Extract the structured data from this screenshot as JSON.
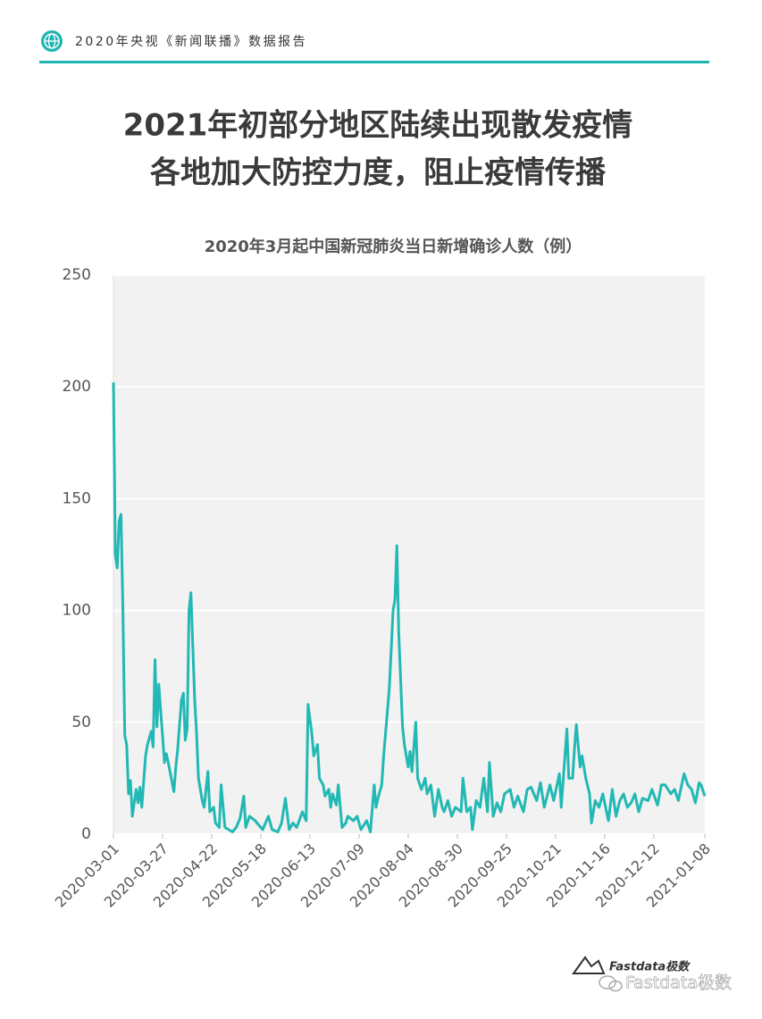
{
  "header": {
    "report": "2020年央视《新闻联播》数据报告",
    "headline": [
      "2021年初部分地区陆续出现散发疫情",
      "各地加大防控力度，阻止疫情传播"
    ]
  },
  "chart_data": {
    "type": "line",
    "title": "2020年3月起中国新冠肺炎当日新增确诊人数（例）",
    "color": "#22b8b4",
    "grid": true,
    "x": [
      "2020-03-01",
      "2020-03-02",
      "2020-03-03",
      "2020-03-04",
      "2020-03-05",
      "2020-03-06",
      "2020-03-07",
      "2020-03-08",
      "2020-03-09",
      "2020-03-10",
      "2020-03-11",
      "2020-03-13",
      "2020-03-14",
      "2020-03-15",
      "2020-03-16",
      "2020-03-18",
      "2020-03-19",
      "2020-03-21",
      "2020-03-22",
      "2020-03-23",
      "2020-03-24",
      "2020-03-25",
      "2020-03-26",
      "2020-03-27",
      "2020-03-28",
      "2020-03-29",
      "2020-03-30",
      "2020-04-02",
      "2020-04-03",
      "2020-04-04",
      "2020-04-06",
      "2020-04-07",
      "2020-04-08",
      "2020-04-09",
      "2020-04-10",
      "2020-04-11",
      "2020-04-13",
      "2020-04-14",
      "2020-04-15",
      "2020-04-17",
      "2020-04-18",
      "2020-04-20",
      "2020-04-21",
      "2020-04-23",
      "2020-04-24",
      "2020-04-26",
      "2020-04-27",
      "2020-04-29",
      "2020-05-01",
      "2020-05-03",
      "2020-05-05",
      "2020-05-07",
      "2020-05-09",
      "2020-05-10",
      "2020-05-12",
      "2020-05-15",
      "2020-05-17",
      "2020-05-19",
      "2020-05-22",
      "2020-05-24",
      "2020-05-27",
      "2020-05-29",
      "2020-05-31",
      "2020-06-02",
      "2020-06-04",
      "2020-06-06",
      "2020-06-09",
      "2020-06-11",
      "2020-06-12",
      "2020-06-14",
      "2020-06-15",
      "2020-06-17",
      "2020-06-18",
      "2020-06-20",
      "2020-06-21",
      "2020-06-23",
      "2020-06-24",
      "2020-06-25",
      "2020-06-27",
      "2020-06-28",
      "2020-06-30",
      "2020-07-02",
      "2020-07-03",
      "2020-07-06",
      "2020-07-08",
      "2020-07-10",
      "2020-07-13",
      "2020-07-15",
      "2020-07-17",
      "2020-07-18",
      "2020-07-19",
      "2020-07-21",
      "2020-07-22",
      "2020-07-24",
      "2020-07-25",
      "2020-07-27",
      "2020-07-28",
      "2020-07-29",
      "2020-07-30",
      "2020-08-01",
      "2020-08-02",
      "2020-08-04",
      "2020-08-05",
      "2020-08-06",
      "2020-08-08",
      "2020-08-09",
      "2020-08-11",
      "2020-08-13",
      "2020-08-14",
      "2020-08-16",
      "2020-08-18",
      "2020-08-20",
      "2020-08-22",
      "2020-08-23",
      "2020-08-25",
      "2020-08-27",
      "2020-08-29",
      "2020-09-01",
      "2020-09-02",
      "2020-09-04",
      "2020-09-06",
      "2020-09-07",
      "2020-09-09",
      "2020-09-11",
      "2020-09-13",
      "2020-09-15",
      "2020-09-16",
      "2020-09-18",
      "2020-09-20",
      "2020-09-22",
      "2020-09-24",
      "2020-09-27",
      "2020-09-29",
      "2020-10-01",
      "2020-10-04",
      "2020-10-06",
      "2020-10-08",
      "2020-10-11",
      "2020-10-13",
      "2020-10-15",
      "2020-10-18",
      "2020-10-20",
      "2020-10-23",
      "2020-10-24",
      "2020-10-27",
      "2020-10-28",
      "2020-10-30",
      "2020-10-31",
      "2020-11-01",
      "2020-11-03",
      "2020-11-04",
      "2020-11-06",
      "2020-11-08",
      "2020-11-09",
      "2020-11-11",
      "2020-11-13",
      "2020-11-15",
      "2020-11-18",
      "2020-11-20",
      "2020-11-22",
      "2020-11-24",
      "2020-11-26",
      "2020-11-28",
      "2020-11-30",
      "2020-12-02",
      "2020-12-04",
      "2020-12-06",
      "2020-12-09",
      "2020-12-11",
      "2020-12-14",
      "2020-12-16",
      "2020-12-18",
      "2020-12-21",
      "2020-12-23",
      "2020-12-25",
      "2020-12-28",
      "2020-12-30",
      "2021-01-01",
      "2021-01-03",
      "2021-01-05",
      "2021-01-06",
      "2021-01-08"
    ],
    "values": [
      202,
      125,
      119,
      140,
      143,
      100,
      44,
      40,
      18,
      24,
      8,
      20,
      14,
      21,
      12,
      35,
      40,
      46,
      39,
      78,
      48,
      67,
      55,
      44,
      32,
      36,
      32,
      19,
      30,
      38,
      60,
      63,
      42,
      47,
      100,
      108,
      60,
      45,
      25,
      15,
      12,
      28,
      10,
      12,
      5,
      3,
      22,
      3,
      2,
      1,
      3,
      7,
      17,
      3,
      8,
      6,
      4,
      2,
      8,
      2,
      1,
      5,
      16,
      2,
      5,
      3,
      10,
      6,
      58,
      45,
      35,
      40,
      25,
      22,
      17,
      20,
      12,
      18,
      13,
      22,
      3,
      5,
      8,
      6,
      8,
      2,
      6,
      1,
      22,
      12,
      16,
      22,
      35,
      55,
      65,
      100,
      105,
      129,
      90,
      48,
      40,
      30,
      37,
      28,
      50,
      25,
      20,
      25,
      18,
      22,
      8,
      20,
      12,
      10,
      15,
      8,
      12,
      10,
      25,
      10,
      12,
      2,
      15,
      12,
      25,
      10,
      32,
      8,
      14,
      10,
      18,
      20,
      12,
      17,
      10,
      20,
      21,
      15,
      23,
      12,
      22,
      15,
      27,
      12,
      47,
      25,
      25,
      38,
      49,
      30,
      35,
      25,
      18,
      5,
      15,
      12,
      18,
      6,
      20,
      8,
      15,
      18,
      12,
      14,
      18,
      10,
      16,
      15,
      20,
      13,
      22,
      22,
      18,
      20,
      15,
      27,
      22,
      20,
      14,
      23,
      22,
      17
    ],
    "xlim": [
      "2020-03-01",
      "2021-01-08"
    ],
    "xticks": [
      "2020-03-01",
      "2020-03-27",
      "2020-04-22",
      "2020-05-18",
      "2020-06-13",
      "2020-07-09",
      "2020-08-04",
      "2020-08-30",
      "2020-09-25",
      "2020-10-21",
      "2020-11-16",
      "2020-12-12",
      "2021-01-08"
    ],
    "ylim": [
      0,
      250
    ],
    "yticks": [
      0,
      50,
      100,
      150,
      200,
      250
    ]
  },
  "footer": {
    "logo": "Fastdata极数",
    "watermark": "Fastdata极数"
  }
}
